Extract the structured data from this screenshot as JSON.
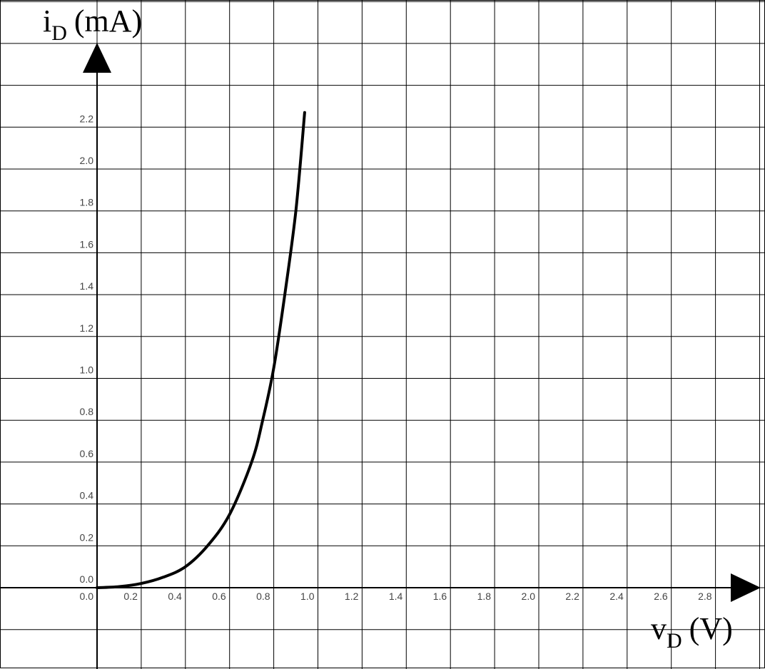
{
  "chart_data": {
    "type": "line",
    "title": "",
    "ylabel": {
      "base": "i",
      "sub": "D",
      "unit": "(mA)"
    },
    "xlabel": {
      "base": "v",
      "sub": "D",
      "unit": "(V)"
    },
    "xlim": [
      0.0,
      3.0
    ],
    "ylim": [
      0.0,
      2.2
    ],
    "grid": true,
    "x_ticks": [
      "0.0",
      "0.2",
      "0.4",
      "0.6",
      "0.8",
      "1.0",
      "1.2",
      "1.4",
      "1.6",
      "1.8",
      "2.0",
      "2.2",
      "2.4",
      "2.6",
      "2.8"
    ],
    "y_ticks": [
      "0.0",
      "0.2",
      "0.4",
      "0.6",
      "0.8",
      "1.0",
      "1.2",
      "1.4",
      "1.6",
      "1.8",
      "2.0",
      "2.2"
    ],
    "series": [
      {
        "color": "#000000",
        "x": [
          0.0,
          0.1,
          0.2,
          0.3,
          0.4,
          0.5,
          0.6,
          0.7,
          0.75,
          0.8,
          0.85,
          0.9,
          0.94
        ],
        "y": [
          0.0,
          0.005,
          0.02,
          0.05,
          0.1,
          0.2,
          0.35,
          0.6,
          0.8,
          1.05,
          1.4,
          1.8,
          2.27
        ]
      }
    ]
  }
}
